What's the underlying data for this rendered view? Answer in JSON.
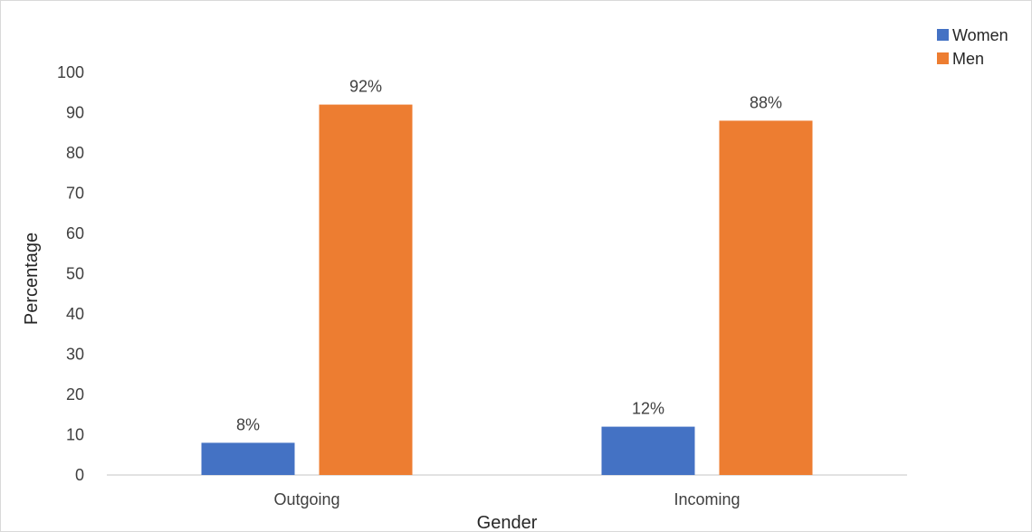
{
  "chart_data": {
    "type": "bar",
    "title": "",
    "xlabel": "Gender",
    "ylabel": "Percentage",
    "categories": [
      "Outgoing",
      "Incoming"
    ],
    "series": [
      {
        "name": "Women",
        "color": "#4472c4",
        "values": [
          8,
          12
        ],
        "labels": [
          "8%",
          "12%"
        ]
      },
      {
        "name": "Men",
        "color": "#ed7d31",
        "values": [
          92,
          88
        ],
        "labels": [
          "92%",
          "88%"
        ]
      }
    ],
    "ylim": [
      0,
      100
    ],
    "yticks": [
      "0",
      "10",
      "20",
      "30",
      "40",
      "50",
      "60",
      "70",
      "80",
      "90",
      "100"
    ],
    "grid": false,
    "legend_position": "top-right"
  }
}
